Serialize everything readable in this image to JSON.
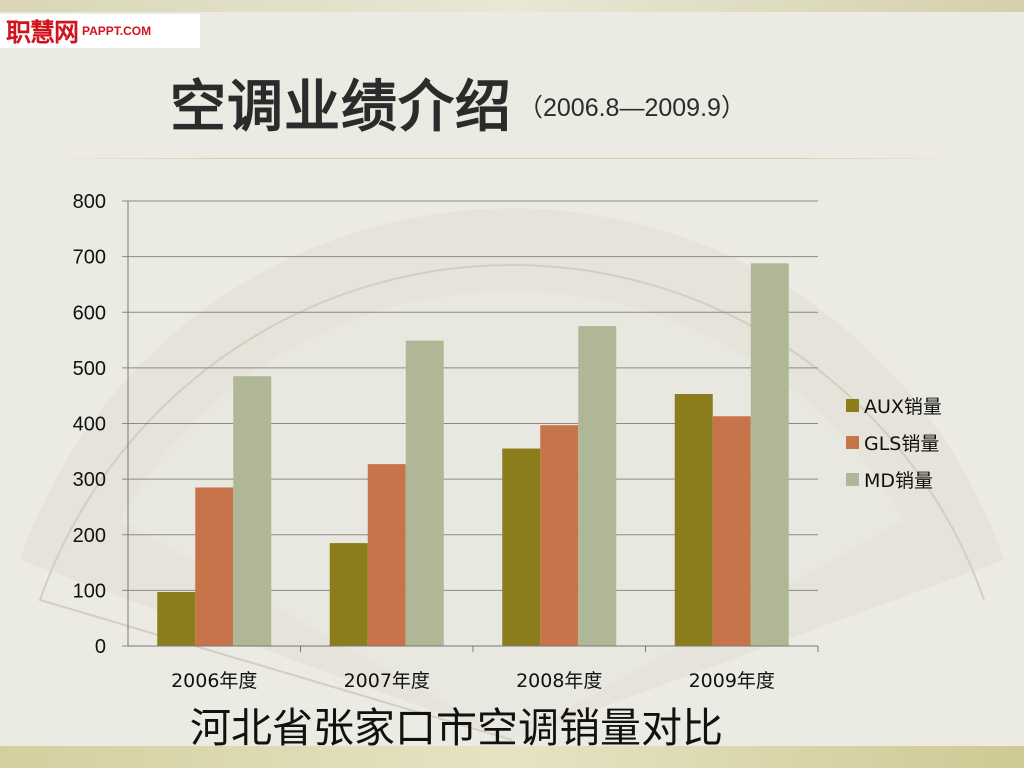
{
  "logo": {
    "cn": "职慧网",
    "en": "PAPPT.COM"
  },
  "title": {
    "main": "空调业绩介绍",
    "range": "（2006.8—2009.9）"
  },
  "caption": "河北省张家口市空调销量对比",
  "chart_data": {
    "type": "bar",
    "categories": [
      "2006年度",
      "2007年度",
      "2008年度",
      "2009年度"
    ],
    "series": [
      {
        "name": "AUX销量",
        "values": [
          97,
          185,
          355,
          453
        ],
        "color": "#8b7d1c"
      },
      {
        "name": "GLS销量",
        "values": [
          285,
          327,
          397,
          413
        ],
        "color": "#c8744a"
      },
      {
        "name": "MD销量",
        "values": [
          485,
          549,
          575,
          688
        ],
        "color": "#afb796"
      }
    ],
    "ylim": [
      0,
      800
    ],
    "yticks": [
      "0",
      "100",
      "200",
      "300",
      "400",
      "500",
      "600",
      "700",
      "800"
    ],
    "grid": true,
    "legend": "right",
    "xlabel": "",
    "ylabel": ""
  }
}
